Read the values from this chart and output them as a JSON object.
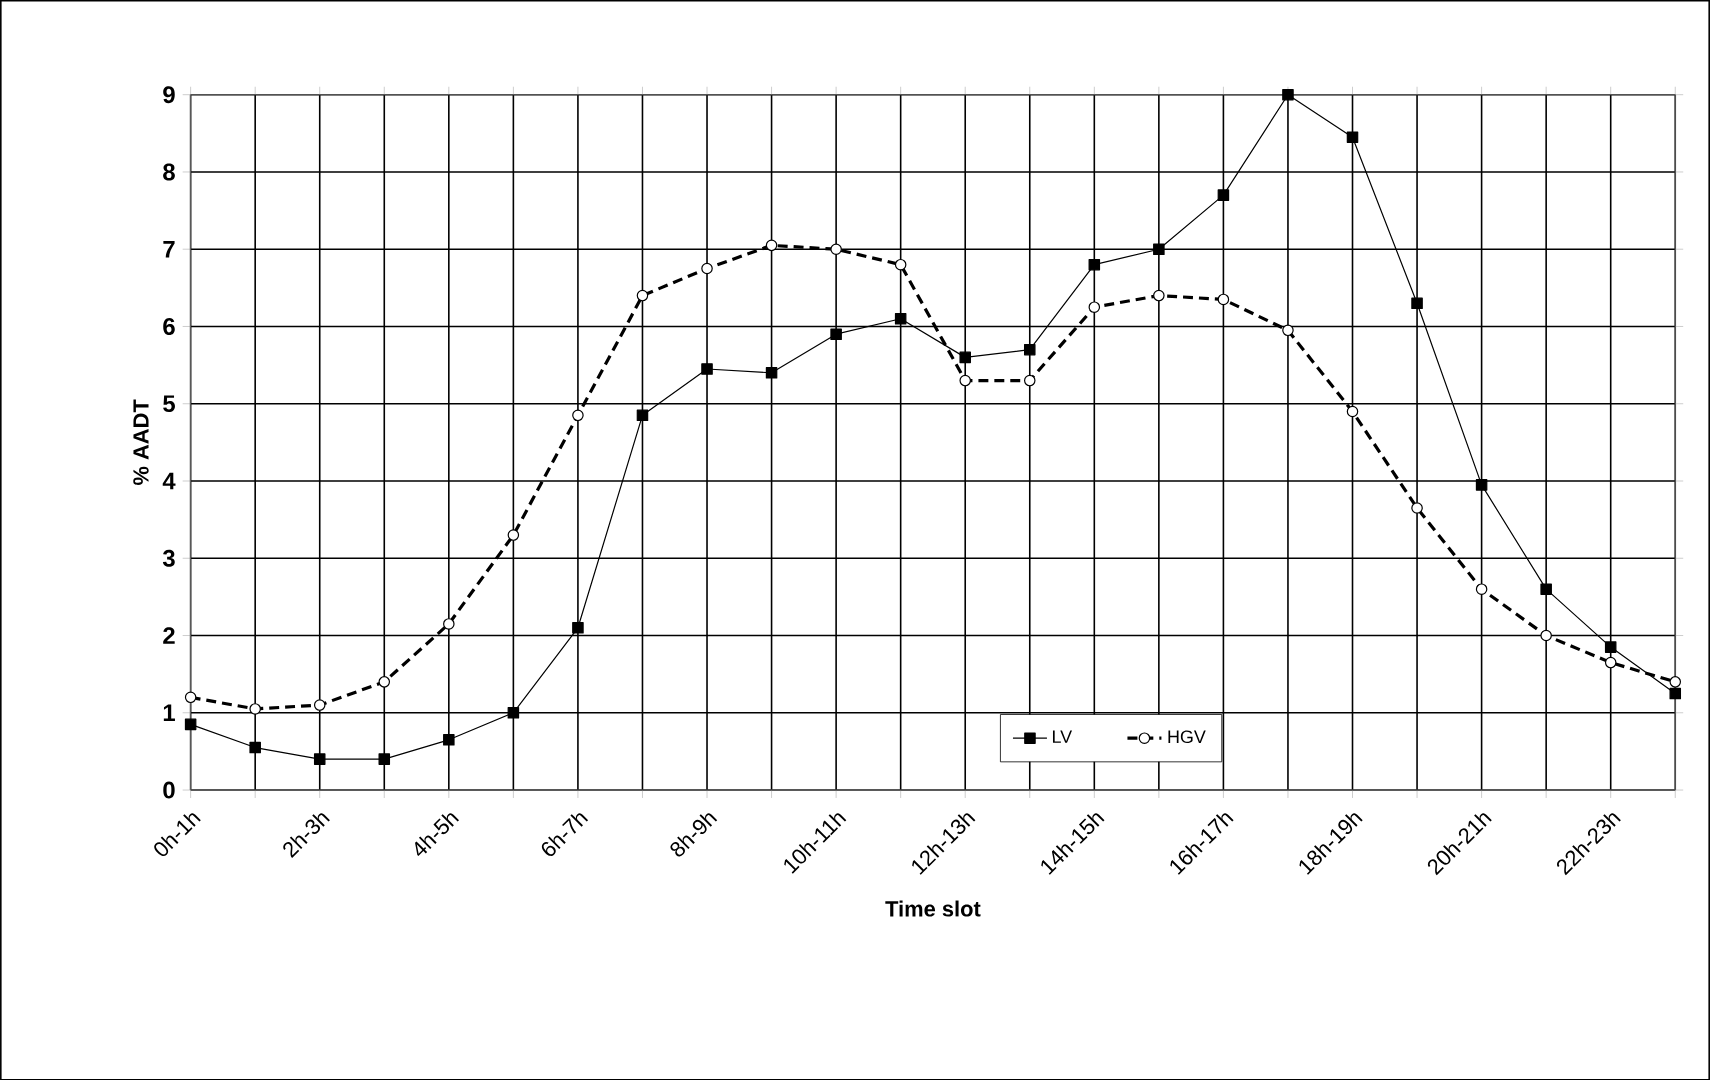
{
  "chart_data": {
    "type": "line",
    "xlabel": "Time slot",
    "ylabel": "% AADT",
    "categories": [
      "0h-1h",
      null,
      "2h-3h",
      null,
      "4h-5h",
      null,
      "6h-7h",
      null,
      "8h-9h",
      null,
      "10h-11h",
      null,
      "12h-13h",
      null,
      "14h-15h",
      null,
      "16h-17h",
      null,
      "18h-19h",
      null,
      "20h-21h",
      null,
      "22h-23h",
      null
    ],
    "series": [
      {
        "name": "LV",
        "color": "#000000",
        "marker": "square",
        "line_style": "solid",
        "values": [
          0.85,
          0.55,
          0.4,
          0.4,
          0.65,
          1.0,
          2.1,
          4.85,
          5.45,
          5.4,
          5.9,
          6.1,
          5.6,
          5.7,
          6.8,
          7.0,
          7.7,
          9.0,
          8.45,
          6.3,
          3.95,
          2.6,
          1.85,
          1.25
        ]
      },
      {
        "name": "HGV",
        "color": "#000000",
        "marker": "circle",
        "line_style": "dashed",
        "values": [
          1.2,
          1.05,
          1.1,
          1.4,
          2.15,
          3.3,
          4.85,
          6.4,
          6.75,
          7.05,
          7.0,
          6.8,
          5.3,
          5.3,
          6.25,
          6.4,
          6.35,
          5.95,
          4.9,
          3.65,
          2.6,
          2.0,
          1.65,
          1.4
        ]
      }
    ],
    "ylim": [
      0,
      9
    ],
    "yticks": [
      0,
      1,
      2,
      3,
      4,
      5,
      6,
      7,
      8,
      9
    ],
    "grid": true,
    "legend": "bottom"
  }
}
